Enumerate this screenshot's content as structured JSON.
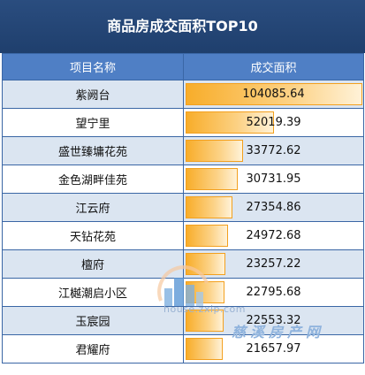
{
  "title": "商品房成交面积TOP10",
  "chart_data": {
    "type": "bar",
    "title": "商品房成交面积TOP10",
    "column_headers": [
      "项目名称",
      "成交面积"
    ],
    "categories": [
      "紫阙台",
      "望宁里",
      "盛世臻墉花苑",
      "金色湖畔佳苑",
      "江云府",
      "天钻花苑",
      "檀府",
      "江樾潮启小区",
      "玉宸园",
      "君耀府"
    ],
    "values": [
      104085.64,
      52019.39,
      33772.62,
      30731.95,
      27354.86,
      24972.68,
      23257.22,
      22795.68,
      22553.32,
      21657.97
    ],
    "value_labels": [
      "104085.64",
      "52019.39",
      "33772.62",
      "30731.95",
      "27354.86",
      "24972.68",
      "23257.22",
      "22795.68",
      "22553.32",
      "21657.97"
    ]
  },
  "watermark": {
    "url": "house.zxip.com",
    "brand": "慈溪房产网"
  },
  "colors": {
    "title_bg": "#1f3f6d",
    "header_bg": "#4f7fc5",
    "row_alt_bg": "#dbe5f1",
    "bar_fill": "#f8ad2a"
  }
}
